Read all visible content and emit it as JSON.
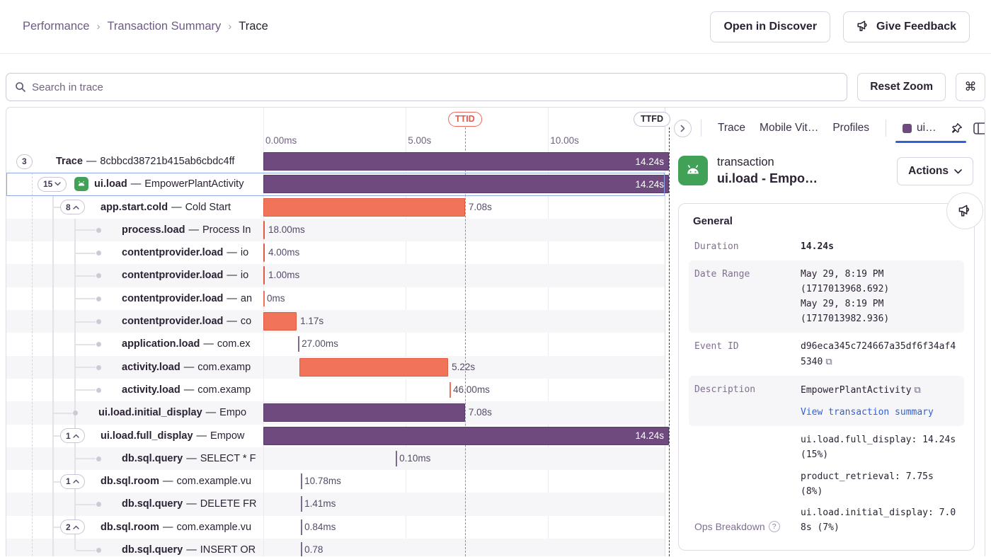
{
  "breadcrumb": {
    "items": [
      "Performance",
      "Transaction Summary",
      "Trace"
    ]
  },
  "header": {
    "open_in_discover": "Open in Discover",
    "give_feedback": "Give Feedback"
  },
  "toolbar": {
    "search_placeholder": "Search in trace",
    "reset_zoom": "Reset Zoom",
    "cmd_key": "⌘"
  },
  "timeline": {
    "duration_s": 14.24,
    "ticks": [
      {
        "label": "0.00ms",
        "s": 0
      },
      {
        "label": "5.00s",
        "s": 5
      },
      {
        "label": "10.00s",
        "s": 10
      }
    ],
    "markers": [
      {
        "label": "TTID",
        "s": 7.08,
        "color": "red"
      },
      {
        "label": "TTFD",
        "s": 14.24,
        "color": "dark"
      }
    ]
  },
  "rows": [
    {
      "badge": "3",
      "level": 0,
      "op": "Trace",
      "desc": "8cbbcd38721b415ab6cbdc4ff",
      "bar": {
        "type": "bar",
        "color": "purple",
        "start": 0,
        "dur": 14.24,
        "label": "14.24s",
        "inside": true
      }
    },
    {
      "badge": "15",
      "chevron": "down",
      "level": 1,
      "android": true,
      "selected": true,
      "op": "ui.load",
      "desc": "EmpowerPlantActivity",
      "bar": {
        "type": "bar",
        "color": "purple",
        "start": 0,
        "dur": 14.24,
        "label": "14.24s",
        "inside": true
      }
    },
    {
      "badge": "8",
      "chevron": "up",
      "level": 2,
      "op": "app.start.cold",
      "desc": "Cold Start",
      "bar": {
        "type": "bar",
        "color": "orange",
        "start": 0,
        "dur": 7.08,
        "label": "7.08s"
      }
    },
    {
      "bullet": true,
      "level": 3,
      "op": "process.load",
      "desc": "Process In",
      "bar": {
        "type": "bar",
        "color": "orange",
        "start": 0,
        "dur": 0.018,
        "label": "18.00ms"
      }
    },
    {
      "bullet": true,
      "level": 3,
      "op": "contentprovider.load",
      "desc": "io",
      "bar": {
        "type": "bar",
        "color": "orange",
        "start": 0,
        "dur": 0.004,
        "label": "4.00ms"
      }
    },
    {
      "bullet": true,
      "level": 3,
      "op": "contentprovider.load",
      "desc": "io",
      "bar": {
        "type": "bar",
        "color": "orange",
        "start": 0,
        "dur": 0.001,
        "label": "1.00ms"
      }
    },
    {
      "bullet": true,
      "level": 3,
      "op": "contentprovider.load",
      "desc": "an",
      "bar": {
        "type": "tick",
        "color": "orange",
        "start": 0,
        "label": "0ms"
      }
    },
    {
      "bullet": true,
      "level": 3,
      "op": "contentprovider.load",
      "desc": "co",
      "bar": {
        "type": "bar",
        "color": "orange",
        "start": 0,
        "dur": 1.17,
        "label": "1.17s"
      }
    },
    {
      "bullet": true,
      "level": 3,
      "op": "application.load",
      "desc": "com.ex",
      "bar": {
        "type": "tick",
        "color": "purple",
        "start": 1.22,
        "label": "27.00ms"
      }
    },
    {
      "bullet": true,
      "level": 3,
      "op": "activity.load",
      "desc": "com.examp",
      "bar": {
        "type": "bar",
        "color": "orange",
        "start": 1.27,
        "dur": 5.22,
        "label": "5.22s"
      }
    },
    {
      "bullet": true,
      "level": 3,
      "op": "activity.load",
      "desc": "com.examp",
      "bar": {
        "type": "tick",
        "color": "orange",
        "start": 6.54,
        "label": "46.00ms"
      }
    },
    {
      "bullet": true,
      "level": 2,
      "op": "ui.load.initial_display",
      "desc": "Empo",
      "bar": {
        "type": "bar",
        "color": "purple",
        "start": 0,
        "dur": 7.08,
        "label": "7.08s"
      }
    },
    {
      "badge": "1",
      "chevron": "up",
      "level": 2,
      "op": "ui.load.full_display",
      "desc": "Empow",
      "bar": {
        "type": "bar",
        "color": "purple",
        "start": 0,
        "dur": 14.24,
        "label": "14.24s",
        "inside": true
      }
    },
    {
      "bullet": true,
      "level": 3,
      "op": "db.sql.query",
      "desc": "SELECT * F",
      "bar": {
        "type": "tick",
        "color": "purple",
        "start": 4.65,
        "label": "0.10ms"
      }
    },
    {
      "badge": "1",
      "chevron": "up",
      "level": 2,
      "op": "db.sql.room",
      "desc": "com.example.vu",
      "bar": {
        "type": "tick",
        "color": "purple",
        "start": 1.32,
        "label": "10.78ms"
      }
    },
    {
      "bullet": true,
      "level": 3,
      "op": "db.sql.query",
      "desc": "DELETE FR",
      "bar": {
        "type": "tick",
        "color": "purple",
        "start": 1.32,
        "label": "1.41ms"
      }
    },
    {
      "badge": "2",
      "chevron": "up",
      "level": 2,
      "op": "db.sql.room",
      "desc": "com.example.vu",
      "bar": {
        "type": "tick",
        "color": "purple",
        "start": 1.32,
        "label": "0.84ms"
      }
    },
    {
      "bullet": true,
      "level": 3,
      "op": "db.sql.query",
      "desc": "INSERT OR",
      "bar": {
        "type": "tick",
        "color": "purple",
        "start": 1.32,
        "label": "0.78"
      }
    }
  ],
  "panel": {
    "tabs": [
      "Trace",
      "Mobile Vit…",
      "Profiles"
    ],
    "active_tab": {
      "label": "ui…",
      "square_color": "#6e4a7e"
    },
    "transaction": {
      "type": "transaction",
      "name": "ui.load - Empo…",
      "actions_label": "Actions"
    },
    "card": {
      "title": "General",
      "rows": [
        {
          "label": "Duration",
          "value": "14.24s",
          "bold": true
        },
        {
          "label": "Date Range",
          "shaded": true,
          "lines": [
            "May 29, 8:19 PM",
            "(1717013968.692)",
            "May 29, 8:19 PM",
            "(1717013982.936)"
          ]
        },
        {
          "label": "Event ID",
          "value": "d96eca345c724667a35df6f34af45340",
          "copy": true
        },
        {
          "label": "Description",
          "shaded": true,
          "value": "EmpowerPlantActivity",
          "copy": true,
          "link": "View transaction summary"
        },
        {
          "label": "Ops Breakdown",
          "help": true,
          "items": [
            "ui.load.full_display: 14.24s (15%)",
            "product_retrieval: 7.75s (8%)",
            "ui.load.initial_display: 7.08s (7%)"
          ]
        }
      ]
    }
  }
}
